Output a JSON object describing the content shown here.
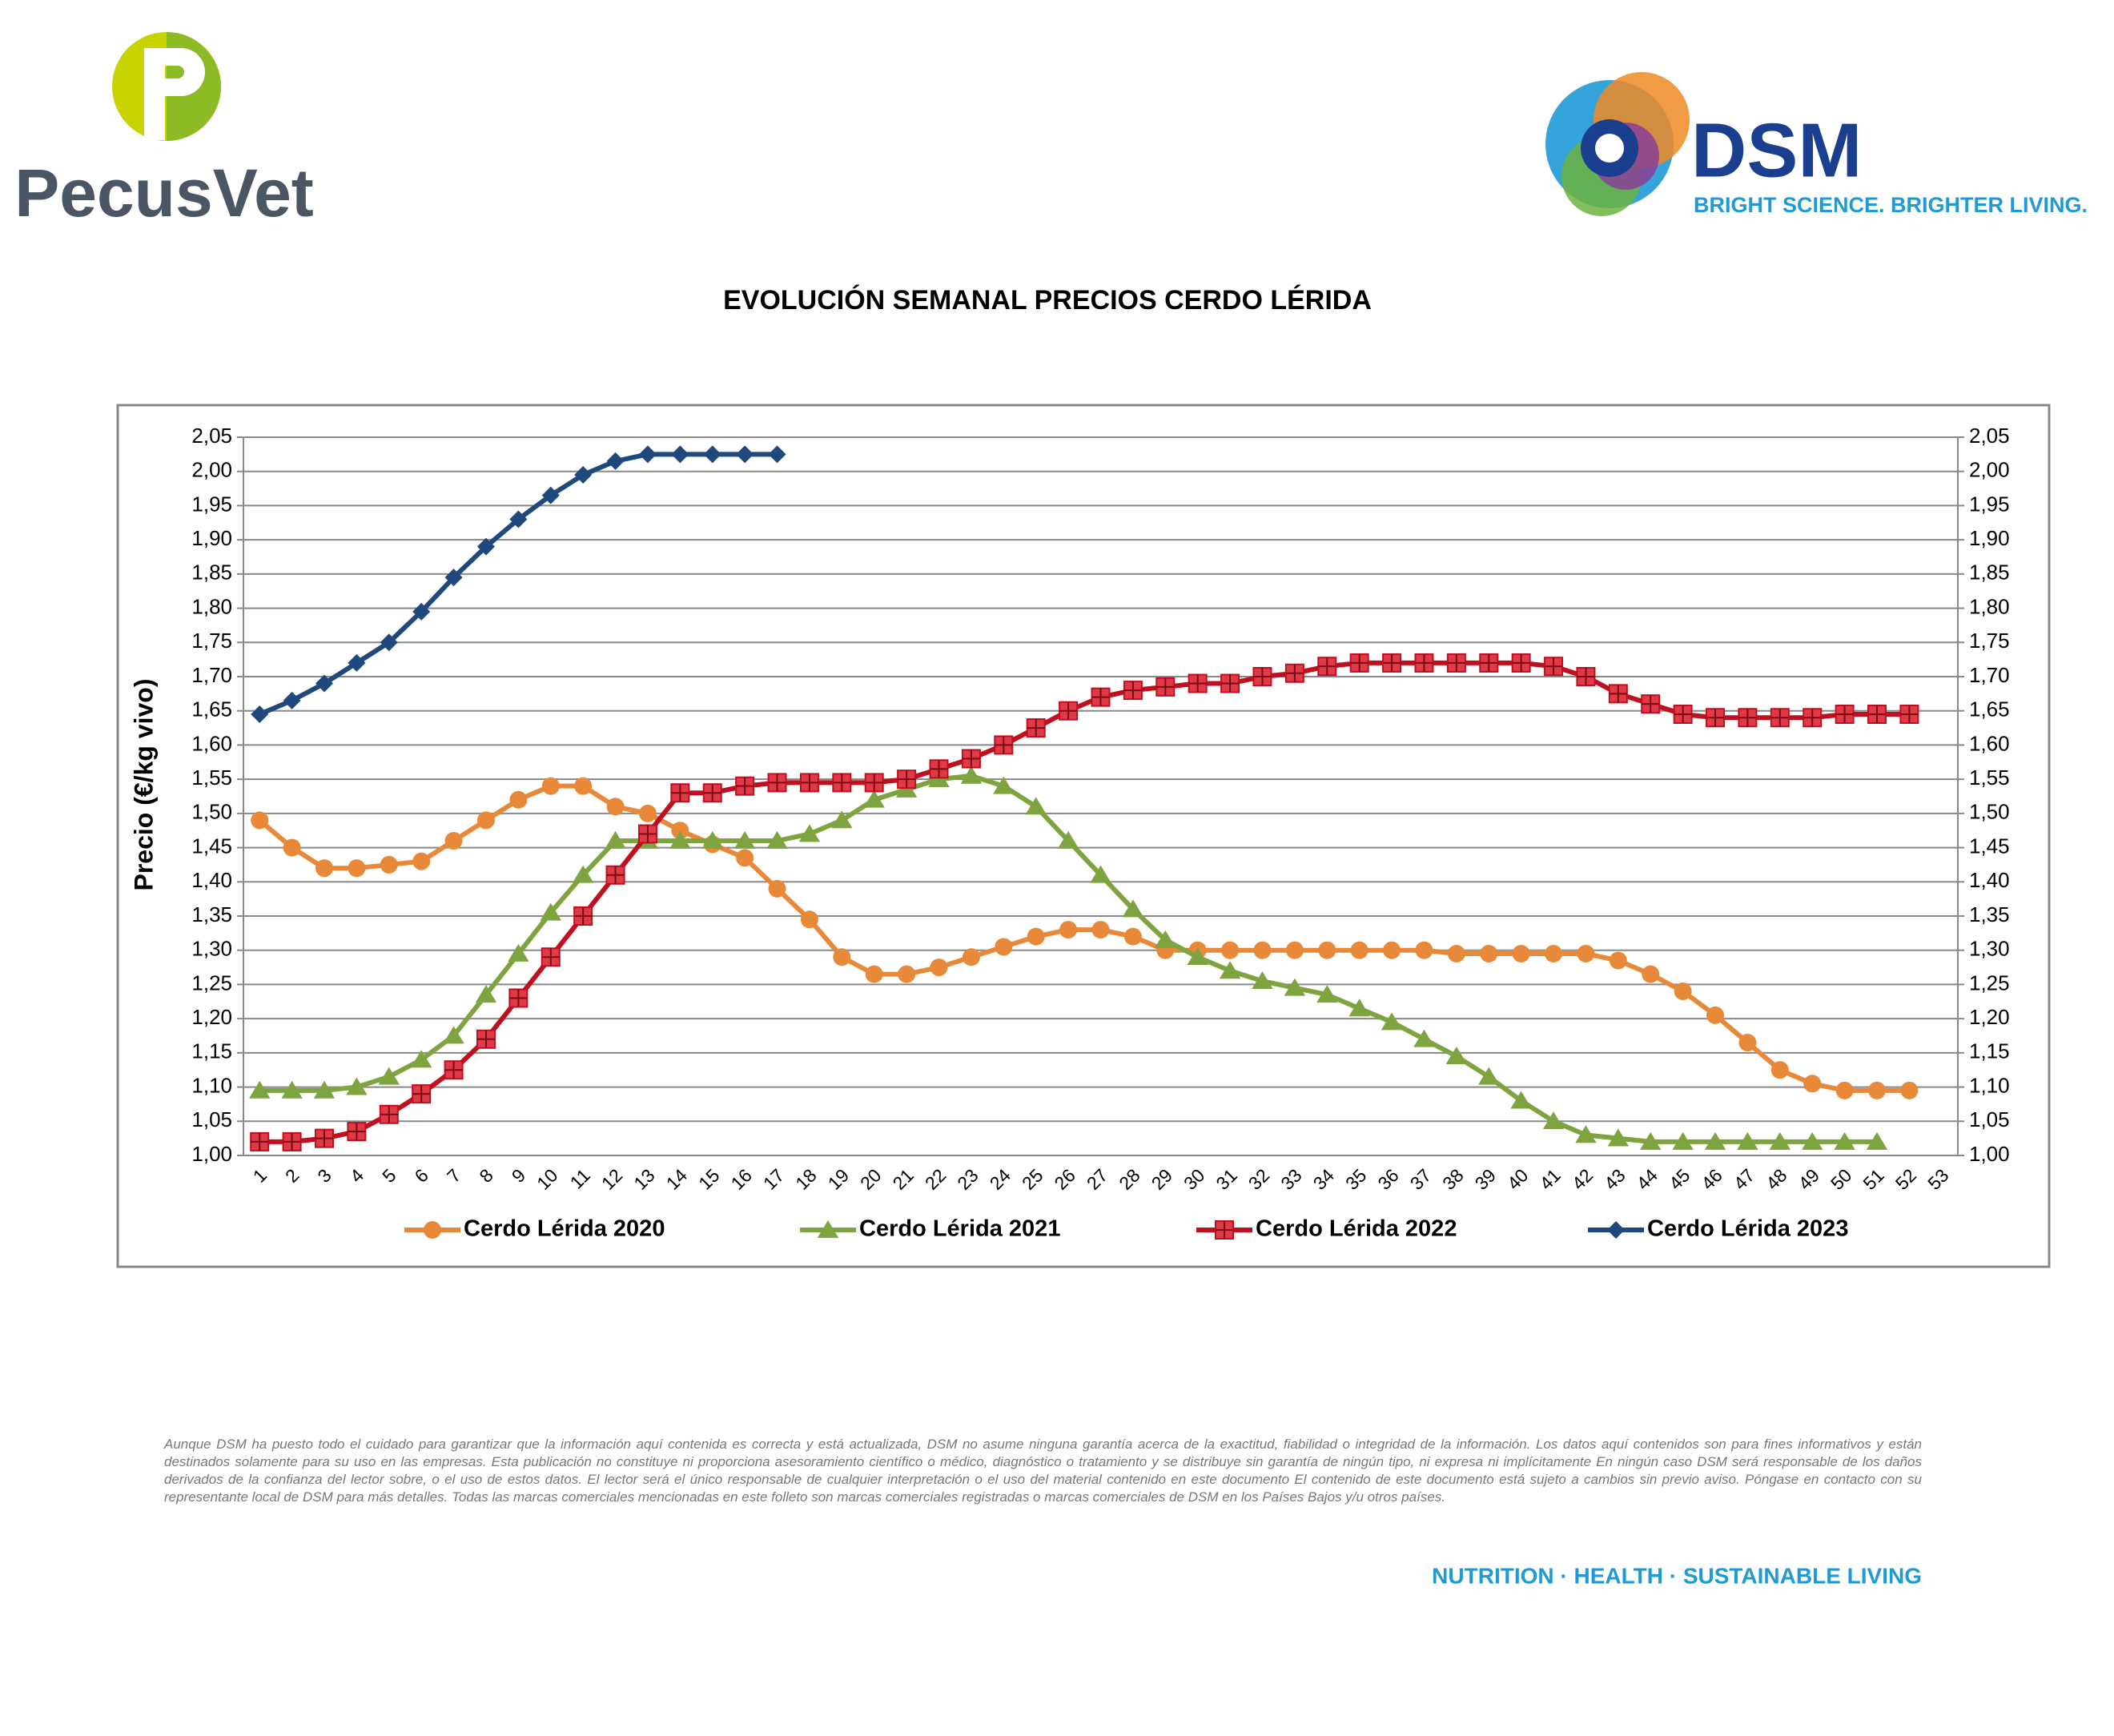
{
  "header": {
    "left_logo": "PecusVet",
    "right_logo": "DSM",
    "right_tagline": "BRIGHT SCIENCE. BRIGHTER LIVING."
  },
  "chart_data": {
    "type": "line",
    "title": "EVOLUCIÓN SEMANAL PRECIOS CERDO LÉRIDA",
    "y_label": "Precio (€/kg vivo)",
    "categories": [
      "1",
      "2",
      "3",
      "4",
      "5",
      "6",
      "7",
      "8",
      "9",
      "10",
      "11",
      "12",
      "13",
      "14",
      "15",
      "16",
      "17",
      "18",
      "19",
      "20",
      "21",
      "22",
      "23",
      "24",
      "25",
      "26",
      "27",
      "28",
      "29",
      "30",
      "31",
      "32",
      "33",
      "34",
      "35",
      "36",
      "37",
      "38",
      "39",
      "40",
      "41",
      "42",
      "43",
      "44",
      "45",
      "46",
      "47",
      "48",
      "49",
      "50",
      "51",
      "52",
      "53"
    ],
    "series": [
      {
        "name": "Cerdo Lérida 2020",
        "color": "#e8893a",
        "marker": "circle",
        "values": [
          1.49,
          1.45,
          1.42,
          1.42,
          1.425,
          1.43,
          1.46,
          1.49,
          1.52,
          1.54,
          1.54,
          1.51,
          1.5,
          1.475,
          1.455,
          1.435,
          1.39,
          1.345,
          1.29,
          1.265,
          1.265,
          1.275,
          1.29,
          1.305,
          1.32,
          1.33,
          1.33,
          1.32,
          1.3,
          1.3,
          1.3,
          1.3,
          1.3,
          1.3,
          1.3,
          1.3,
          1.3,
          1.295,
          1.295,
          1.295,
          1.295,
          1.295,
          1.285,
          1.265,
          1.24,
          1.205,
          1.165,
          1.125,
          1.105,
          1.095,
          1.095,
          1.095,
          null
        ]
      },
      {
        "name": "Cerdo Lérida 2021",
        "color": "#7ea43f",
        "marker": "triangle",
        "values": [
          1.095,
          1.095,
          1.095,
          1.1,
          1.115,
          1.14,
          1.175,
          1.235,
          1.295,
          1.355,
          1.41,
          1.46,
          1.46,
          1.46,
          1.46,
          1.46,
          1.46,
          1.47,
          1.49,
          1.52,
          1.535,
          1.55,
          1.555,
          1.54,
          1.51,
          1.46,
          1.41,
          1.36,
          1.315,
          1.29,
          1.27,
          1.255,
          1.245,
          1.235,
          1.215,
          1.195,
          1.17,
          1.145,
          1.115,
          1.08,
          1.05,
          1.03,
          1.025,
          1.02,
          1.02,
          1.02,
          1.02,
          1.02,
          1.02,
          1.02,
          1.02,
          null,
          null
        ]
      },
      {
        "name": "Cerdo Lérida 2022",
        "color": "#c0101f",
        "marker": "square-cross",
        "values": [
          1.02,
          1.02,
          1.025,
          1.035,
          1.06,
          1.09,
          1.125,
          1.17,
          1.23,
          1.29,
          1.35,
          1.41,
          1.47,
          1.53,
          1.53,
          1.54,
          1.545,
          1.545,
          1.545,
          1.545,
          1.55,
          1.565,
          1.58,
          1.6,
          1.625,
          1.65,
          1.67,
          1.68,
          1.685,
          1.69,
          1.69,
          1.7,
          1.705,
          1.715,
          1.72,
          1.72,
          1.72,
          1.72,
          1.72,
          1.72,
          1.715,
          1.7,
          1.675,
          1.66,
          1.645,
          1.64,
          1.64,
          1.64,
          1.64,
          1.645,
          1.645,
          1.645,
          null
        ]
      },
      {
        "name": "Cerdo Lérida 2023",
        "color": "#1f497d",
        "marker": "diamond",
        "values": [
          1.645,
          1.665,
          1.69,
          1.72,
          1.75,
          1.795,
          1.845,
          1.89,
          1.93,
          1.965,
          1.995,
          2.015,
          2.025,
          2.025,
          2.025,
          2.025,
          2.025,
          null,
          null,
          null,
          null,
          null,
          null,
          null,
          null,
          null,
          null,
          null,
          null,
          null,
          null,
          null,
          null,
          null,
          null,
          null,
          null,
          null,
          null,
          null,
          null,
          null,
          null,
          null,
          null,
          null,
          null,
          null,
          null,
          null,
          null,
          null,
          null
        ]
      }
    ],
    "ylim": [
      1.0,
      2.05
    ],
    "yticks": [
      {
        "value": 1.0,
        "label": "1,00"
      },
      {
        "value": 1.05,
        "label": "1,05"
      },
      {
        "value": 1.1,
        "label": "1,10"
      },
      {
        "value": 1.15,
        "label": "1,15"
      },
      {
        "value": 1.2,
        "label": "1,20"
      },
      {
        "value": 1.25,
        "label": "1,25"
      },
      {
        "value": 1.3,
        "label": "1,30"
      },
      {
        "value": 1.35,
        "label": "1,35"
      },
      {
        "value": 1.4,
        "label": "1,40"
      },
      {
        "value": 1.45,
        "label": "1,45"
      },
      {
        "value": 1.5,
        "label": "1,50"
      },
      {
        "value": 1.55,
        "label": "1,55"
      },
      {
        "value": 1.6,
        "label": "1,60"
      },
      {
        "value": 1.65,
        "label": "1,65"
      },
      {
        "value": 1.7,
        "label": "1,70"
      },
      {
        "value": 1.75,
        "label": "1,75"
      },
      {
        "value": 1.8,
        "label": "1,80"
      },
      {
        "value": 1.85,
        "label": "1,85"
      },
      {
        "value": 1.9,
        "label": "1,90"
      },
      {
        "value": 1.95,
        "label": "1,95"
      },
      {
        "value": 2.0,
        "label": "2,00"
      },
      {
        "value": 2.05,
        "label": "2,05"
      }
    ],
    "grid": true,
    "legend": "bottom"
  },
  "disclaimer": "Aunque DSM ha puesto todo el cuidado para garantizar que la información aquí contenida es correcta y está actualizada, DSM no asume ninguna garantía acerca de la exactitud, fiabilidad o integridad de la información. Los datos aquí contenidos son para fines informativos y están destinados solamente para su uso en las empresas. Esta publicación no constituye ni proporciona asesoramiento científico o médico, diagnóstico o tratamiento y se distribuye sin garantía de ningún tipo, ni expresa ni implícitamente En ningún caso DSM será responsable de los daños derivados de la confianza del lector sobre, o el uso de estos datos. El lector será el único responsable de cualquier interpretación o el uso del material contenido en este documento El contenido de este documento está sujeto a cambios sin previo aviso. Póngase en contacto con su representante local de DSM para más detalles. Todas las marcas comerciales mencionadas en este folleto son marcas comerciales registradas o marcas comerciales de DSM en los Países Bajos y/u otros países.",
  "footer": "NUTRITION · HEALTH · SUSTAINABLE LIVING"
}
